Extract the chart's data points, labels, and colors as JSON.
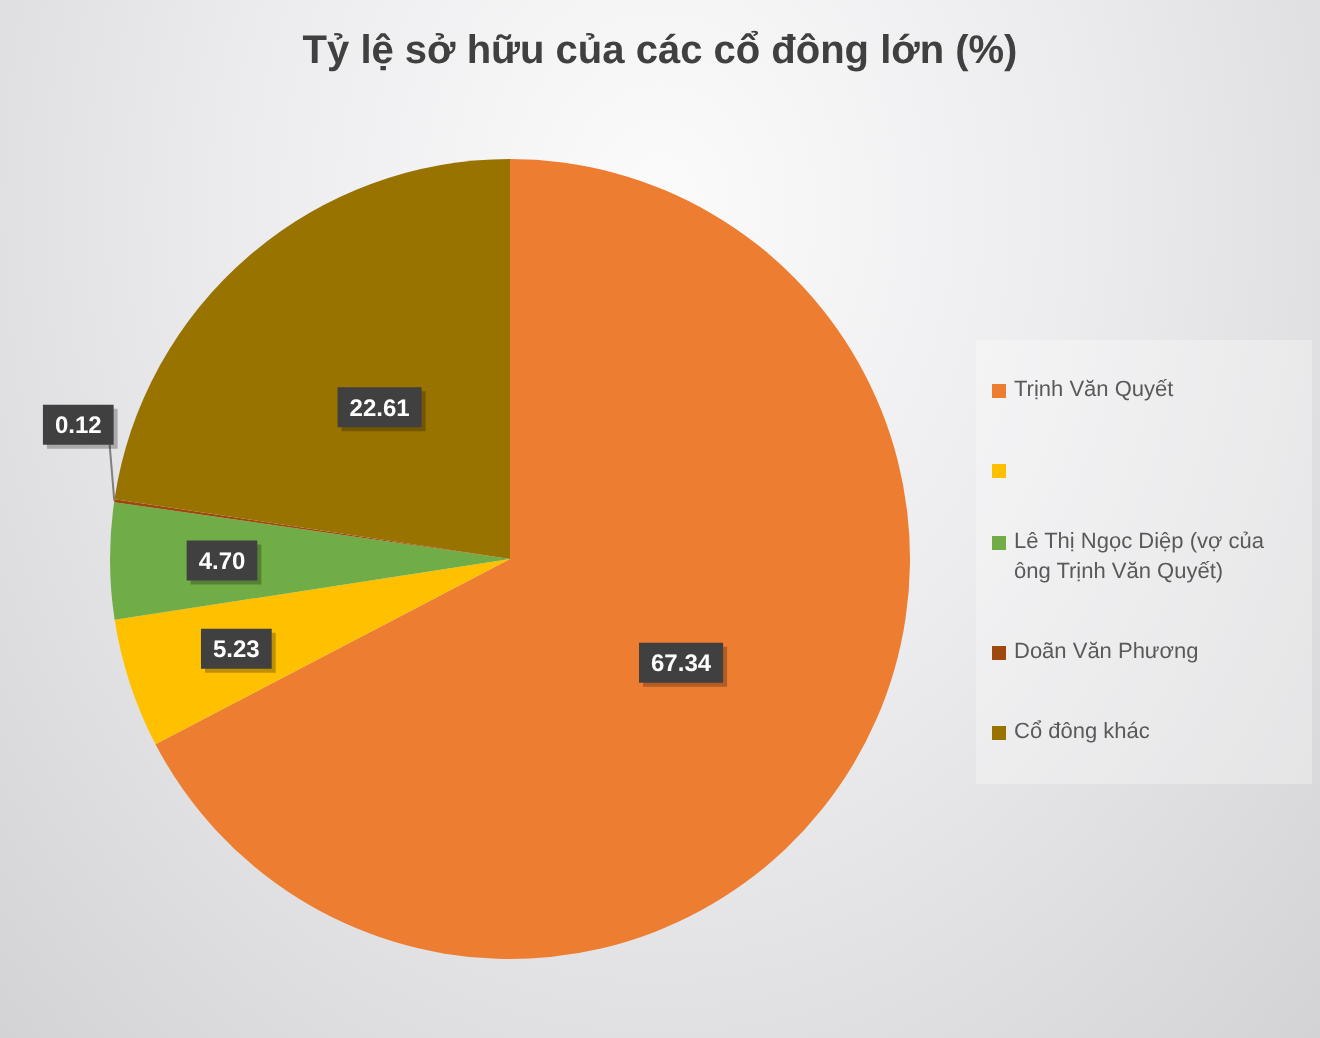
{
  "chart_data": {
    "type": "pie",
    "title": "Tỷ lệ sở hữu của các cổ đông lớn (%)",
    "categories": [
      "Trịnh Văn Quyết",
      null,
      "Lê Thị Ngọc Diệp (vợ của ông Trịnh Văn Quyết)",
      "Doãn Văn Phương",
      "Cổ đông khác"
    ],
    "values": [
      67.34,
      5.23,
      4.7,
      0.12,
      22.61
    ],
    "colors": [
      "#ed7d31",
      "#ffc000",
      "#70ad47",
      "#9e480e",
      "#997300"
    ],
    "value_labels": [
      "67.34",
      "5.23",
      "4.70",
      "0.12",
      "22.61"
    ],
    "legend": "right"
  }
}
